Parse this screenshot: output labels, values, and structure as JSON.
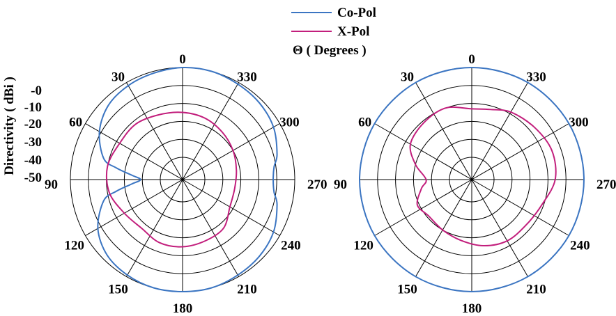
{
  "legend": {
    "items": [
      {
        "label": "Co-Pol",
        "color": "#3b75c2"
      },
      {
        "label": "X-Pol",
        "color": "#c21e7c"
      }
    ],
    "theta_label": "Θ ( Degrees )"
  },
  "chart_data": [
    {
      "type": "line",
      "polar": true,
      "ylabel": "Directivity ( dBi )",
      "r_ticks": [
        "-0",
        "-10",
        "-20",
        "-30",
        "-40",
        "-50"
      ],
      "rlim": [
        -50,
        0
      ],
      "angle_ticks": [
        "0",
        "30",
        "60",
        "90",
        "120",
        "150",
        "180",
        "210",
        "240",
        "270",
        "300",
        "330"
      ],
      "angle_direction": "counterclockwise",
      "grid": true,
      "series": [
        {
          "name": "Co-Pol",
          "theta": [
            0,
            15,
            30,
            45,
            60,
            75,
            80,
            85,
            90,
            95,
            100,
            105,
            120,
            135,
            150,
            165,
            180,
            195,
            210,
            225,
            240,
            255,
            262,
            270,
            278,
            285,
            300,
            315,
            330,
            345
          ],
          "values": [
            0,
            -1,
            -2,
            -4,
            -9,
            -17,
            -25,
            -34,
            -39,
            -34,
            -25,
            -17,
            -8,
            -3,
            -1,
            0,
            0,
            0,
            -1,
            -2,
            -4,
            -8,
            -11,
            -12,
            -11,
            -8,
            -4,
            -2,
            -1,
            0
          ]
        },
        {
          "name": "X-Pol",
          "theta": [
            0,
            20,
            40,
            60,
            80,
            100,
            120,
            140,
            160,
            180,
            200,
            220,
            240,
            260,
            280,
            300,
            320,
            340
          ],
          "values": [
            -25,
            -24,
            -22,
            -22,
            -20,
            -21,
            -25,
            -27,
            -25,
            -25,
            -26,
            -27,
            -32,
            -33,
            -32,
            -30,
            -28,
            -26
          ]
        }
      ]
    },
    {
      "type": "line",
      "polar": true,
      "rlim": [
        -50,
        0
      ],
      "angle_ticks": [
        "0",
        "30",
        "60",
        "90",
        "120",
        "150",
        "180",
        "210",
        "240",
        "270",
        "300",
        "330"
      ],
      "angle_direction": "counterclockwise",
      "grid": true,
      "series": [
        {
          "name": "Co-Pol",
          "theta": [
            0,
            30,
            60,
            90,
            120,
            150,
            180,
            210,
            240,
            270,
            300,
            330
          ],
          "values": [
            0,
            0,
            0,
            0,
            0,
            0,
            0,
            0,
            0,
            0,
            0,
            0
          ]
        },
        {
          "name": "X-Pol",
          "theta": [
            0,
            20,
            40,
            60,
            75,
            90,
            100,
            115,
            130,
            150,
            170,
            190,
            210,
            230,
            250,
            270,
            290,
            310,
            330,
            345
          ],
          "values": [
            -23,
            -20,
            -21,
            -23,
            -30,
            -37,
            -34,
            -29,
            -31,
            -30,
            -28,
            -25,
            -23,
            -23,
            -21,
            -16,
            -15,
            -17,
            -19,
            -22
          ]
        }
      ]
    }
  ]
}
